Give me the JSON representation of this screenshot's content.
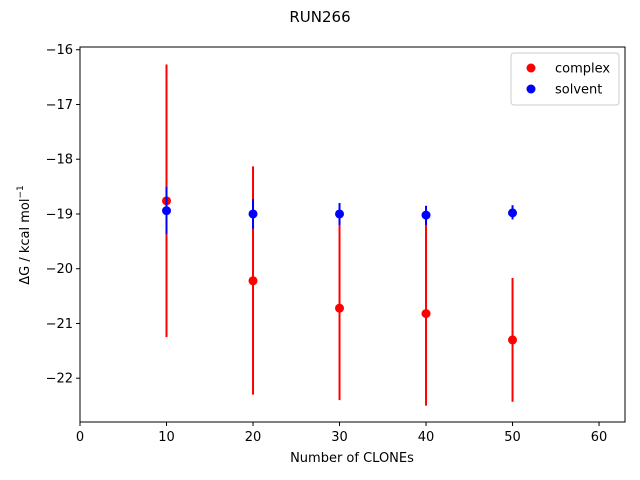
{
  "chart_data": {
    "type": "scatter",
    "title": "RUN266",
    "xlabel": "Number of CLONEs",
    "ylabel_main": "ΔG / kcal mol",
    "ylabel_sup": "−1",
    "xlim": [
      0,
      63
    ],
    "ylim": [
      -22.8,
      -15.95
    ],
    "xticks": [
      0,
      10,
      20,
      30,
      40,
      50,
      60
    ],
    "xtick_labels": [
      "0",
      "10",
      "20",
      "30",
      "40",
      "50",
      "60"
    ],
    "yticks": [
      -22,
      -21,
      -20,
      -19,
      -18,
      -17,
      -16
    ],
    "ytick_labels": [
      "−22",
      "−21",
      "−20",
      "−19",
      "−18",
      "−17",
      "−16"
    ],
    "grid": false,
    "legend_position": "top-right",
    "series": [
      {
        "name": "complex",
        "color": "#ff0000",
        "x": [
          10,
          20,
          30,
          40,
          50
        ],
        "y": [
          -18.76,
          -20.22,
          -20.72,
          -20.82,
          -21.3
        ],
        "ylow": [
          -21.25,
          -22.3,
          -22.4,
          -22.5,
          -22.43
        ],
        "yhigh": [
          -16.27,
          -18.13,
          -19.0,
          -19.1,
          -20.17
        ]
      },
      {
        "name": "solvent",
        "color": "#0000ff",
        "x": [
          10,
          20,
          30,
          40,
          50
        ],
        "y": [
          -18.94,
          -19.0,
          -19.0,
          -19.02,
          -18.98
        ],
        "ylow": [
          -19.37,
          -19.27,
          -19.2,
          -19.2,
          -19.1
        ],
        "yhigh": [
          -18.5,
          -18.73,
          -18.8,
          -18.85,
          -18.84
        ]
      }
    ]
  }
}
